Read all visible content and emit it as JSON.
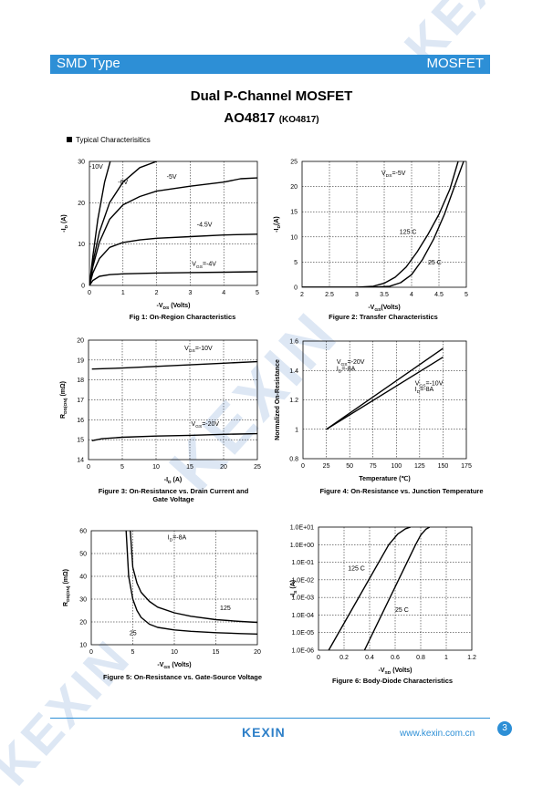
{
  "header": {
    "left": "SMD Type",
    "right": "MOSFET"
  },
  "title": {
    "line1": "Dual P-Channel MOSFET",
    "part": "AO4817",
    "alt": "(KO4817)"
  },
  "section": {
    "label": "Typical  Characterisitics"
  },
  "watermark": {
    "text": "KEXIN"
  },
  "footer": {
    "logo": "KEXIN",
    "url": "www.kexin.com.cn",
    "page": "3"
  },
  "colors": {
    "accent": "#2d8fd6",
    "watermark": "#dde7f4"
  },
  "captions": {
    "fig1": "Fig 1: On-Region Characteristics",
    "fig2": "Figure 2: Transfer Characteristics",
    "fig3": "Figure 3: On-Resistance vs. Drain Current and\nGate Voltage",
    "fig4": "Figure 4: On-Resistance vs. Junction Temperature",
    "fig5": "Figure 5: On-Resistance vs. Gate-Source Voltage",
    "fig6": "Figure 6: Body-Diode Characteristics"
  },
  "chart_data": [
    {
      "id": "fig1",
      "type": "line",
      "grid": true,
      "xlabel": "-VDS (Volts)",
      "ylabel": "-ID (A)",
      "xlim": [
        0,
        5
      ],
      "ylim": [
        0,
        30
      ],
      "xticks": [
        "0",
        "1",
        "2",
        "3",
        "4",
        "5"
      ],
      "yticks": [
        "0",
        "10",
        "20",
        "30"
      ],
      "series": [
        {
          "name": "-10V",
          "x": [
            0,
            0.1,
            0.25,
            0.45,
            0.62
          ],
          "y": [
            0,
            7,
            16,
            25,
            30
          ]
        },
        {
          "name": "-6V",
          "x": [
            0,
            0.1,
            0.3,
            0.6,
            1.0,
            1.5,
            2.0
          ],
          "y": [
            0,
            5.5,
            13,
            20,
            25,
            28.5,
            30
          ]
        },
        {
          "name": "-5V",
          "x": [
            0,
            0.1,
            0.3,
            0.6,
            1,
            1.5,
            2,
            3,
            4,
            4.5,
            5
          ],
          "y": [
            0,
            4.5,
            10.5,
            16,
            19.5,
            21.5,
            22.8,
            24,
            25,
            25.8,
            26
          ]
        },
        {
          "name": "-4.5V",
          "x": [
            0,
            0.1,
            0.3,
            0.6,
            1,
            1.5,
            2,
            3,
            4,
            5
          ],
          "y": [
            0,
            3,
            6.5,
            9.2,
            10.4,
            11,
            11.4,
            11.8,
            12.2,
            12.4
          ]
        },
        {
          "name": "VGS=-4V",
          "x": [
            0,
            0.1,
            0.3,
            0.6,
            1,
            2,
            3,
            4,
            5
          ],
          "y": [
            0,
            1.2,
            2.2,
            2.6,
            2.8,
            3.0,
            3.1,
            3.2,
            3.3
          ]
        }
      ],
      "labels": [
        {
          "text": "-10V",
          "x": 0.0,
          "y": 28.2
        },
        {
          "text": "-6V",
          "x": 0.85,
          "y": 24.5
        },
        {
          "text": "-5V",
          "x": 2.3,
          "y": 25.8
        },
        {
          "text": "-4.5V",
          "x": 3.2,
          "y": 14.2
        },
        {
          "text": "VGS=-4V",
          "x": 3.05,
          "y": 4.7
        }
      ]
    },
    {
      "id": "fig2",
      "type": "line",
      "grid": true,
      "xlabel": "-VGS(Volts)",
      "ylabel": "-ID(A)",
      "xlim": [
        2,
        5
      ],
      "ylim": [
        0,
        25
      ],
      "xticks": [
        "2",
        "2.5",
        "3",
        "3.5",
        "4",
        "4.5",
        "5"
      ],
      "yticks": [
        "0",
        "5",
        "10",
        "15",
        "20",
        "25"
      ],
      "series": [
        {
          "name": "125°C",
          "x": [
            2.0,
            3.0,
            3.3,
            3.5,
            3.7,
            3.9,
            4.1,
            4.3,
            4.5,
            4.7,
            4.85
          ],
          "y": [
            0,
            0,
            0.2,
            0.8,
            2.0,
            4.0,
            7.0,
            10.5,
            14.5,
            19.5,
            25
          ]
        },
        {
          "name": "25°C",
          "x": [
            2.0,
            3.3,
            3.6,
            3.8,
            4.0,
            4.2,
            4.4,
            4.6,
            4.8,
            4.95
          ],
          "y": [
            0,
            0,
            0.2,
            0.9,
            2.5,
            5.5,
            9.5,
            14.5,
            20.5,
            25
          ]
        }
      ],
      "labels": [
        {
          "text": "VDS=-5V",
          "x": 3.45,
          "y": 22.3
        },
        {
          "text": "125  C",
          "x": 3.78,
          "y": 10.6
        },
        {
          "text": "25  C",
          "x": 4.3,
          "y": 4.5
        }
      ]
    },
    {
      "id": "fig3",
      "type": "line",
      "grid": true,
      "xlabel": "-ID (A)",
      "ylabel": "RDS(ON) (mΩ)",
      "xlim": [
        0,
        25
      ],
      "ylim": [
        14,
        20
      ],
      "xticks": [
        "0",
        "5",
        "10",
        "15",
        "20",
        "25"
      ],
      "yticks": [
        "14",
        "15",
        "16",
        "17",
        "18",
        "19",
        "20"
      ],
      "series": [
        {
          "name": "VGS=-10V",
          "x": [
            0.5,
            5,
            10,
            15,
            20,
            25
          ],
          "y": [
            18.55,
            18.6,
            18.68,
            18.76,
            18.84,
            18.92
          ]
        },
        {
          "name": "VGS=-20V",
          "x": [
            0.5,
            2,
            5,
            10,
            15,
            20,
            25
          ],
          "y": [
            14.95,
            15.05,
            15.12,
            15.18,
            15.22,
            15.27,
            15.3
          ]
        }
      ],
      "labels": [
        {
          "text": "VGS=-10V",
          "x": 14.2,
          "y": 19.5
        },
        {
          "text": "VGS=-20V",
          "x": 15.2,
          "y": 15.7
        }
      ]
    },
    {
      "id": "fig4",
      "type": "line",
      "grid": true,
      "xlabel": "Temperature (℃)",
      "ylabel": "Normalized On-Resistance",
      "xlim": [
        0,
        175
      ],
      "ylim": [
        0.8,
        1.6
      ],
      "xticks": [
        "0",
        "25",
        "50",
        "75",
        "100",
        "125",
        "150",
        "175"
      ],
      "yticks": [
        "0.8",
        "1",
        "1.2",
        "1.4",
        "1.6"
      ],
      "series": [
        {
          "name": "VGS=-20V ID=-8A",
          "x": [
            25,
            150
          ],
          "y": [
            1.0,
            1.55
          ]
        },
        {
          "name": "VGS=-10V ID=-8A",
          "x": [
            25,
            150
          ],
          "y": [
            1.0,
            1.49
          ]
        }
      ],
      "labels": [
        {
          "text": "VGS=-20V",
          "x": 36,
          "y": 1.445
        },
        {
          "text": "ID=-8A",
          "x": 36,
          "y": 1.4
        },
        {
          "text": "VGS=-10V",
          "x": 120,
          "y": 1.3
        },
        {
          "text": "ID=-8A",
          "x": 120,
          "y": 1.26
        }
      ]
    },
    {
      "id": "fig5",
      "type": "line",
      "grid": true,
      "xlabel": "-VGS (Volts)",
      "ylabel": "RDS(ON) (mΩ)",
      "xlim": [
        0,
        20
      ],
      "ylim": [
        10,
        60
      ],
      "xticks": [
        "0",
        "5",
        "10",
        "15",
        "20"
      ],
      "yticks": [
        "10",
        "20",
        "30",
        "40",
        "50",
        "60"
      ],
      "series": [
        {
          "name": "125°C",
          "x": [
            4.7,
            5,
            5.5,
            6,
            7,
            8,
            10,
            12,
            15,
            18,
            20
          ],
          "y": [
            60,
            44,
            37,
            33,
            29,
            26.5,
            24,
            22.5,
            21,
            20.2,
            19.8
          ]
        },
        {
          "name": "25°C",
          "x": [
            4.2,
            4.5,
            5,
            5.5,
            6,
            7,
            8,
            10,
            12,
            15,
            18,
            20
          ],
          "y": [
            60,
            40,
            30,
            25,
            22,
            19,
            17.6,
            16.5,
            15.9,
            15.3,
            14.9,
            14.7
          ]
        }
      ],
      "labels": [
        {
          "text": "ID=-8A",
          "x": 9.2,
          "y": 56.2
        },
        {
          "text": "125",
          "x": 15.5,
          "y": 25.2
        },
        {
          "text": "25",
          "x": 4.6,
          "y": 14.2
        }
      ]
    },
    {
      "id": "fig6",
      "type": "line",
      "grid": true,
      "yscale": "log",
      "xlabel": "-VSD (Volts)",
      "ylabel": "-IS (A)",
      "xlim": [
        0,
        1.2
      ],
      "ylim": [
        1e-06,
        10
      ],
      "xticks": [
        "0",
        "0.2",
        "0.4",
        "0.6",
        "0.8",
        "1",
        "1.2"
      ],
      "yticks": [
        "1.0E-06",
        "1.0E-05",
        "1.0E-04",
        "1.0E-03",
        "1.0E-02",
        "1.0E-01",
        "1.0E+00",
        "1.0E+01"
      ],
      "series": [
        {
          "name": "125°C",
          "x": [
            0.08,
            0.55,
            0.62,
            0.68,
            0.72
          ],
          "y": [
            1e-06,
            1.0,
            4.0,
            8.0,
            10.0
          ]
        },
        {
          "name": "25°C",
          "x": [
            0.36,
            0.76,
            0.8,
            0.84,
            0.87
          ],
          "y": [
            1e-06,
            1.0,
            3.5,
            7.5,
            10.0
          ]
        }
      ],
      "labels": [
        {
          "text": "125  C",
          "x": 0.23,
          "y": 0.035
        },
        {
          "text": "25  C",
          "x": 0.6,
          "y": 0.00015
        }
      ]
    }
  ]
}
